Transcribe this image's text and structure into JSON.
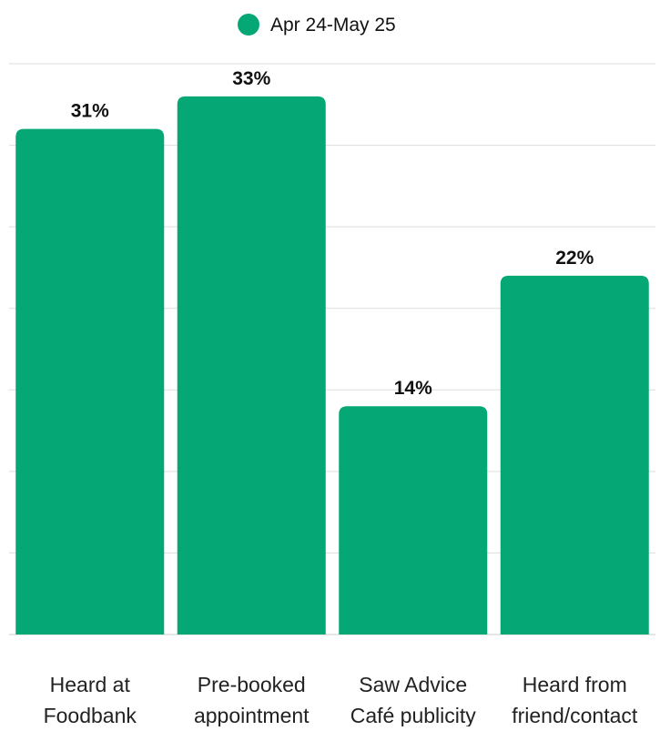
{
  "chart_data": {
    "type": "bar",
    "title": "",
    "xlabel": "",
    "ylabel": "",
    "categories": [
      [
        "Heard at",
        "Foodbank"
      ],
      [
        "Pre-booked",
        "appointment"
      ],
      [
        "Saw Advice",
        "Café publicity"
      ],
      [
        "Heard from",
        "friend/contact"
      ]
    ],
    "series": [
      {
        "name": "Apr 24-May 25",
        "values": [
          31,
          33,
          14,
          22
        ],
        "labels": [
          "31%",
          "33%",
          "14%",
          "22%"
        ],
        "color": "#05a775"
      }
    ],
    "ylim": [
      0,
      35
    ],
    "grid": true,
    "legend": "top-center",
    "colors": {
      "bar": "#05a775",
      "grid": "#dddddd",
      "axis": "#cccccc",
      "text": "#111111",
      "category_text": "#222222"
    }
  }
}
